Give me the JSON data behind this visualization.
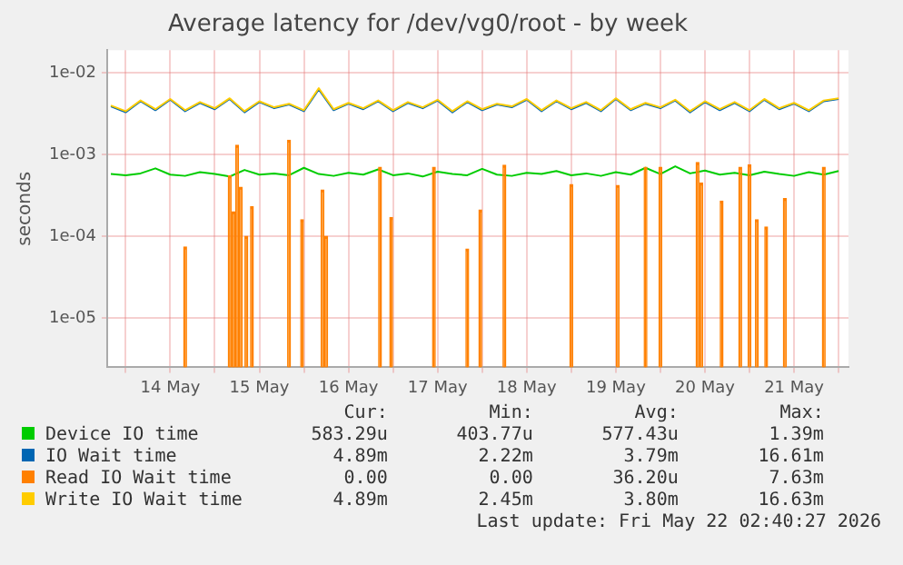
{
  "chart_data": {
    "type": "line",
    "title": "Average latency for /dev/vg0/root - by week",
    "ylabel": "seconds",
    "x": [
      "2026-05-13T20:00",
      "2026-05-14T00:00",
      "2026-05-14T04:00",
      "2026-05-14T08:00",
      "2026-05-14T12:00",
      "2026-05-14T16:00",
      "2026-05-14T20:00",
      "2026-05-15T00:00",
      "2026-05-15T04:00",
      "2026-05-15T08:00",
      "2026-05-15T12:00",
      "2026-05-15T16:00",
      "2026-05-15T20:00",
      "2026-05-16T00:00",
      "2026-05-16T04:00",
      "2026-05-16T08:00",
      "2026-05-16T12:00",
      "2026-05-16T16:00",
      "2026-05-16T20:00",
      "2026-05-17T00:00",
      "2026-05-17T04:00",
      "2026-05-17T08:00",
      "2026-05-17T12:00",
      "2026-05-17T16:00",
      "2026-05-17T20:00",
      "2026-05-18T00:00",
      "2026-05-18T04:00",
      "2026-05-18T08:00",
      "2026-05-18T12:00",
      "2026-05-18T16:00",
      "2026-05-18T20:00",
      "2026-05-19T00:00",
      "2026-05-19T04:00",
      "2026-05-19T08:00",
      "2026-05-19T12:00",
      "2026-05-19T16:00",
      "2026-05-19T20:00",
      "2026-05-20T00:00",
      "2026-05-20T04:00",
      "2026-05-20T08:00",
      "2026-05-20T12:00",
      "2026-05-20T16:00",
      "2026-05-20T20:00",
      "2026-05-21T00:00",
      "2026-05-21T04:00",
      "2026-05-21T08:00",
      "2026-05-21T12:00",
      "2026-05-21T16:00",
      "2026-05-21T20:00",
      "2026-05-22T00:00"
    ],
    "series": [
      {
        "name": "Device IO time",
        "color": "#00cc00",
        "values": [
          0.00058,
          0.00056,
          0.00059,
          0.00068,
          0.00057,
          0.00055,
          0.00061,
          0.00058,
          0.00054,
          0.00065,
          0.00057,
          0.00059,
          0.00056,
          0.00069,
          0.00058,
          0.00055,
          0.0006,
          0.00057,
          0.00066,
          0.00056,
          0.00059,
          0.00054,
          0.00062,
          0.00058,
          0.00056,
          0.00067,
          0.00057,
          0.00055,
          0.0006,
          0.00058,
          0.00063,
          0.00056,
          0.00059,
          0.00055,
          0.00061,
          0.00057,
          0.00069,
          0.00058,
          0.00072,
          0.00059,
          0.00064,
          0.00057,
          0.0006,
          0.00056,
          0.00062,
          0.00058,
          0.00055,
          0.00061,
          0.00057,
          0.00063
        ]
      },
      {
        "name": "IO Wait time",
        "color": "#0066b3",
        "values": [
          0.0039,
          0.0033,
          0.0045,
          0.0035,
          0.0047,
          0.0034,
          0.0043,
          0.0036,
          0.0048,
          0.0033,
          0.0044,
          0.0037,
          0.0041,
          0.0034,
          0.0063,
          0.0035,
          0.0042,
          0.0036,
          0.0045,
          0.0034,
          0.0043,
          0.0037,
          0.0046,
          0.0033,
          0.0044,
          0.0035,
          0.0041,
          0.0038,
          0.0047,
          0.0034,
          0.0045,
          0.0036,
          0.0043,
          0.0034,
          0.0048,
          0.0035,
          0.0042,
          0.0037,
          0.0046,
          0.0033,
          0.0044,
          0.0035,
          0.0043,
          0.0034,
          0.0047,
          0.0036,
          0.0042,
          0.0034,
          0.0045,
          0.0048
        ]
      },
      {
        "name": "Read IO Wait time",
        "color": "#ff8000",
        "type": "bar",
        "x": [
          "2026-05-14T16:00",
          "2026-05-15T04:00",
          "2026-05-15T05:00",
          "2026-05-15T06:00",
          "2026-05-15T07:00",
          "2026-05-15T08:30",
          "2026-05-15T10:00",
          "2026-05-15T20:00",
          "2026-05-15T23:30",
          "2026-05-16T05:00",
          "2026-05-16T06:00",
          "2026-05-16T20:30",
          "2026-05-16T23:30",
          "2026-05-17T11:00",
          "2026-05-17T20:00",
          "2026-05-17T23:30",
          "2026-05-18T06:00",
          "2026-05-19T00:00",
          "2026-05-19T12:30",
          "2026-05-19T20:00",
          "2026-05-20T00:00",
          "2026-05-20T10:00",
          "2026-05-20T11:00",
          "2026-05-20T16:30",
          "2026-05-20T21:30",
          "2026-05-21T00:00",
          "2026-05-21T02:00",
          "2026-05-21T04:30",
          "2026-05-21T09:30",
          "2026-05-21T20:00"
        ],
        "values": [
          7.4e-05,
          0.00055,
          0.0002,
          0.0013,
          0.0004,
          0.0001,
          0.00023,
          0.0015,
          0.00016,
          0.00037,
          0.0001,
          0.0007,
          0.00017,
          0.0007,
          7e-05,
          0.00021,
          0.00074,
          0.00043,
          0.00042,
          0.0007,
          0.0007,
          0.0008,
          0.00045,
          0.00027,
          0.0007,
          0.00075,
          0.00016,
          0.00013,
          0.00029,
          0.0007
        ]
      },
      {
        "name": "Write IO Wait time",
        "color": "#ffcc00",
        "values": [
          0.004,
          0.0034,
          0.0046,
          0.0036,
          0.0048,
          0.0035,
          0.0044,
          0.0037,
          0.0049,
          0.0034,
          0.0045,
          0.0038,
          0.0042,
          0.0035,
          0.0065,
          0.0036,
          0.0043,
          0.0037,
          0.0046,
          0.0035,
          0.0044,
          0.0038,
          0.0047,
          0.0034,
          0.0045,
          0.0036,
          0.0042,
          0.0039,
          0.0048,
          0.0035,
          0.0046,
          0.0037,
          0.0044,
          0.0035,
          0.0049,
          0.0036,
          0.0043,
          0.0038,
          0.0047,
          0.0034,
          0.0045,
          0.0036,
          0.0044,
          0.0035,
          0.0048,
          0.0037,
          0.0043,
          0.0035,
          0.0046,
          0.0049
        ]
      }
    ],
    "log": "y",
    "xlim": [
      "2026-05-13T19:00",
      "2026-05-22T02:40"
    ],
    "xticks": [
      {
        "value": "2026-05-14T00:00",
        "label": null
      },
      {
        "value": "2026-05-14T12:00",
        "label": "14 May"
      },
      {
        "value": "2026-05-15T00:00",
        "label": null
      },
      {
        "value": "2026-05-15T12:00",
        "label": "15 May"
      },
      {
        "value": "2026-05-16T00:00",
        "label": null
      },
      {
        "value": "2026-05-16T12:00",
        "label": "16 May"
      },
      {
        "value": "2026-05-17T00:00",
        "label": null
      },
      {
        "value": "2026-05-17T12:00",
        "label": "17 May"
      },
      {
        "value": "2026-05-18T00:00",
        "label": null
      },
      {
        "value": "2026-05-18T12:00",
        "label": "18 May"
      },
      {
        "value": "2026-05-19T00:00",
        "label": null
      },
      {
        "value": "2026-05-19T12:00",
        "label": "19 May"
      },
      {
        "value": "2026-05-20T00:00",
        "label": null
      },
      {
        "value": "2026-05-20T12:00",
        "label": "20 May"
      },
      {
        "value": "2026-05-21T00:00",
        "label": null
      },
      {
        "value": "2026-05-21T12:00",
        "label": "21 May"
      },
      {
        "value": "2026-05-22T00:00",
        "label": null
      }
    ],
    "ylim": [
      2.5e-06,
      0.019
    ],
    "yticks": [
      {
        "value": 1e-05,
        "label": "1e-05"
      },
      {
        "value": 0.0001,
        "label": "1e-04"
      },
      {
        "value": 0.001,
        "label": "1e-03"
      },
      {
        "value": 0.01,
        "label": "1e-02"
      }
    ],
    "grid": true,
    "legend": "bottom",
    "annotations": [
      "Cur:",
      "Min:",
      "Avg:",
      "Max:",
      "583.29u",
      "403.77u",
      "577.43u",
      "1.39m",
      "4.89m",
      "2.22m",
      "3.79m",
      "16.61m",
      "0.00",
      "0.00",
      "36.20u",
      "7.63m",
      "4.89m",
      "2.45m",
      "3.80m",
      "16.63m",
      "Last update: Fri May 22 02:40:27 2026"
    ]
  }
}
